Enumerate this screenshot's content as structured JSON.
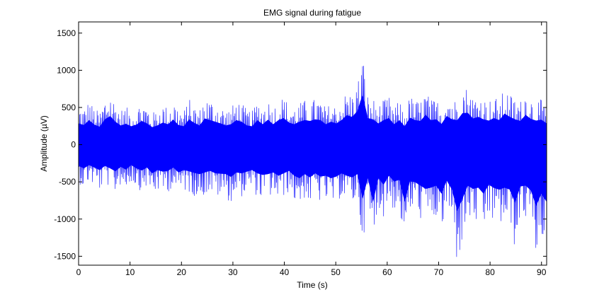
{
  "chart_data": {
    "type": "line",
    "title": "EMG signal during fatigue",
    "xlabel": "Time (s)",
    "ylabel": "Amplitude (µV)",
    "xlim": [
      0,
      91
    ],
    "ylim": [
      -1620,
      1650
    ],
    "x_ticks": [
      0,
      10,
      20,
      30,
      40,
      50,
      60,
      70,
      80,
      90
    ],
    "y_ticks": [
      -1500,
      -1000,
      -500,
      0,
      500,
      1000,
      1500
    ],
    "grid": false,
    "legend": "none",
    "series": [
      {
        "color": "#0000ff",
        "sample_interval_s": 0.1,
        "upper_envelope": [
          520,
          480,
          600,
          490,
          440,
          620,
          700,
          560,
          470,
          510,
          450,
          490,
          580,
          520,
          430,
          470,
          540,
          500,
          610,
          480,
          450,
          620,
          530,
          470,
          640,
          600,
          560,
          520,
          470,
          500,
          600,
          560,
          470,
          450,
          600,
          500,
          610,
          500,
          600,
          650,
          540,
          500,
          560,
          600,
          580,
          620,
          600,
          500,
          560,
          520,
          600,
          720,
          680,
          820,
          1230,
          650,
          620,
          520,
          600,
          650,
          500,
          600,
          450,
          660,
          600,
          580,
          730,
          600,
          620,
          510,
          700,
          620,
          600,
          770,
          780,
          640,
          680,
          620,
          590,
          650,
          600,
          760,
          680,
          620,
          580,
          730,
          630,
          590,
          610,
          520
        ],
        "lower_envelope": [
          -520,
          -580,
          -500,
          -560,
          -620,
          -520,
          -580,
          -650,
          -540,
          -610,
          -500,
          -580,
          -630,
          -560,
          -700,
          -620,
          -660,
          -640,
          -560,
          -680,
          -620,
          -650,
          -690,
          -720,
          -680,
          -640,
          -700,
          -710,
          -720,
          -790,
          -680,
          -700,
          -660,
          -620,
          -700,
          -740,
          -720,
          -680,
          -760,
          -700,
          -640,
          -760,
          -820,
          -720,
          -800,
          -700,
          -780,
          -760,
          -820,
          -780,
          -700,
          -760,
          -800,
          -720,
          -1320,
          -820,
          -1400,
          -820,
          -980,
          -760,
          -900,
          -860,
          -1400,
          -900,
          -920,
          -1000,
          -1080,
          -1050,
          -1000,
          -1200,
          -880,
          -1100,
          -1620,
          -1320,
          -1000,
          -1080,
          -1050,
          -1200,
          -980,
          -1060,
          -1100,
          -1050,
          -1100,
          -1420,
          -1020,
          -1000,
          -1120,
          -1500,
          -1200,
          -1400
        ]
      }
    ]
  }
}
